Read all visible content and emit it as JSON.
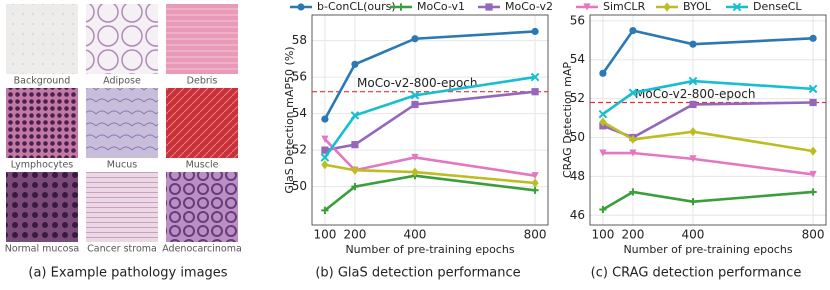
{
  "panel_a": {
    "labels": [
      "Background",
      "Adipose",
      "Debris",
      "Lymphocytes",
      "Mucus",
      "Muscle",
      "Normal mucosa",
      "Cancer  stroma",
      "Adenocarcinoma"
    ],
    "caption": "(a) Example pathology images"
  },
  "chart_data": [
    {
      "type": "line",
      "caption": "(b) GlaS detection performance",
      "x_label": "Number of pre-training epochs",
      "y_label": "GlaS Detection mAP50 (%)",
      "x": [
        100,
        200,
        400,
        800
      ],
      "xlim": [
        57,
        843
      ],
      "xticks": [
        100,
        200,
        400,
        800
      ],
      "ylim": [
        47.9,
        59.4
      ],
      "yticks": [
        50,
        52,
        54,
        56,
        58
      ],
      "grid": true,
      "reference_line": {
        "value": 55.2,
        "label": "MoCo-v2-800-epoch",
        "color": "#e8312f"
      },
      "series": [
        {
          "name": "b-ConCL(ours)",
          "color": "#2b78b4",
          "marker": "circle",
          "values": [
            53.7,
            56.7,
            58.1,
            58.5
          ]
        },
        {
          "name": "MoCo-v1",
          "color": "#3a9e3a",
          "marker": "plus",
          "values": [
            48.7,
            50.0,
            50.6,
            49.8
          ]
        },
        {
          "name": "MoCo-v2",
          "color": "#9467bd",
          "marker": "square",
          "values": [
            52.0,
            52.3,
            54.5,
            55.2
          ]
        },
        {
          "name": "SimCLR",
          "color": "#e377c2",
          "marker": "triangle",
          "values": [
            52.6,
            50.9,
            51.6,
            50.6
          ]
        },
        {
          "name": "BYOL",
          "color": "#bcbd22",
          "marker": "diamond",
          "values": [
            51.2,
            50.9,
            50.8,
            50.2
          ]
        },
        {
          "name": "DenseCL",
          "color": "#17becf",
          "marker": "x",
          "values": [
            51.6,
            53.9,
            55.0,
            56.0
          ]
        }
      ]
    },
    {
      "type": "line",
      "caption": "(c) CRAG detection performance",
      "x_label": "Number of pre-training epochs",
      "y_label": "CRAG Detection mAP",
      "x": [
        100,
        200,
        400,
        800
      ],
      "xlim": [
        57,
        843
      ],
      "xticks": [
        100,
        200,
        400,
        800
      ],
      "ylim": [
        45.5,
        56.3
      ],
      "yticks": [
        46,
        48,
        50,
        52,
        54,
        56
      ],
      "grid": true,
      "reference_line": {
        "value": 51.8,
        "label": "MoCo-v2-800-epoch",
        "color": "#e8312f"
      },
      "series": [
        {
          "name": "b-ConCL(ours)",
          "color": "#2b78b4",
          "marker": "circle",
          "values": [
            53.3,
            55.5,
            54.8,
            55.1
          ]
        },
        {
          "name": "MoCo-v1",
          "color": "#3a9e3a",
          "marker": "plus",
          "values": [
            46.3,
            47.2,
            46.7,
            47.2
          ]
        },
        {
          "name": "MoCo-v2",
          "color": "#9467bd",
          "marker": "square",
          "values": [
            50.6,
            50.0,
            51.7,
            51.8
          ]
        },
        {
          "name": "SimCLR",
          "color": "#e377c2",
          "marker": "triangle",
          "values": [
            49.2,
            49.2,
            48.9,
            48.1
          ]
        },
        {
          "name": "BYOL",
          "color": "#bcbd22",
          "marker": "diamond",
          "values": [
            50.8,
            49.9,
            50.3,
            49.3
          ]
        },
        {
          "name": "DenseCL",
          "color": "#17becf",
          "marker": "x",
          "values": [
            51.2,
            52.3,
            52.9,
            52.5
          ]
        }
      ]
    }
  ]
}
